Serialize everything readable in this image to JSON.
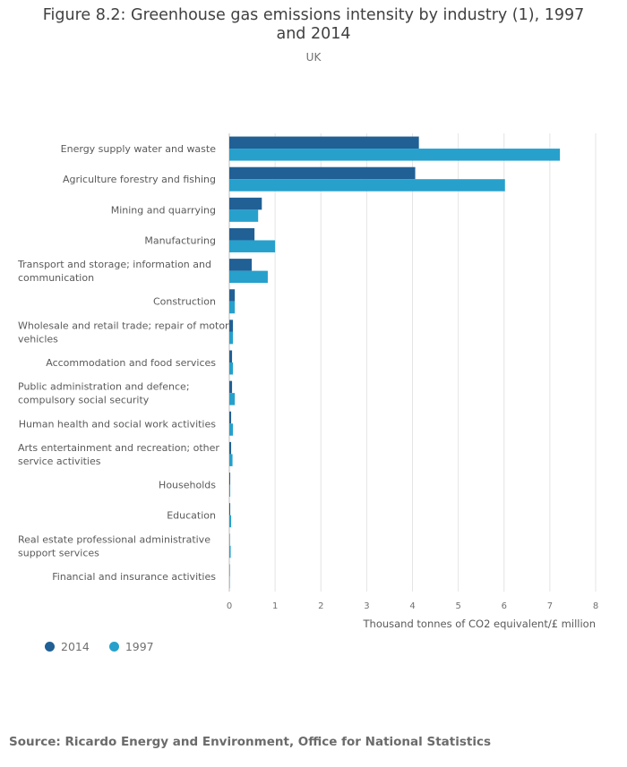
{
  "page": {
    "title": "Figure 8.2: Greenhouse gas emissions intensity by industry (1), 1997 and 2014",
    "subtitle": "UK",
    "source": "Source: Ricardo Energy and Environment, Office for National Statistics"
  },
  "colors": {
    "series_2014": "#206095",
    "series_1997": "#27a0cc",
    "grid": "#e4e4e4",
    "axis": "#bcbcbc"
  },
  "chart_data": {
    "type": "bar",
    "orientation": "horizontal",
    "title": "Figure 8.2: Greenhouse gas emissions intensity by industry (1), 1997 and 2014",
    "subtitle": "UK",
    "xlabel": "Thousand tonnes of CO2 equivalent/£ million",
    "ylabel": "",
    "xlim": [
      0,
      8
    ],
    "x_ticks": [
      0,
      1,
      2,
      3,
      4,
      5,
      6,
      7,
      8
    ],
    "grid": true,
    "legend_position": "bottom-left",
    "categories": [
      [
        "Energy supply water and waste"
      ],
      [
        "Agriculture forestry and fishing"
      ],
      [
        "Mining and quarrying"
      ],
      [
        "Manufacturing"
      ],
      [
        "Transport and storage; information and",
        "communication"
      ],
      [
        "Construction"
      ],
      [
        "Wholesale and retail trade; repair of motor",
        "vehicles"
      ],
      [
        "Accommodation and food services"
      ],
      [
        "Public administration and defence;",
        "compulsory social security"
      ],
      [
        "Human health and social work activities"
      ],
      [
        "Arts entertainment and recreation; other",
        "service activities"
      ],
      [
        "Households"
      ],
      [
        "Education"
      ],
      [
        "Real estate professional administrative",
        "support services"
      ],
      [
        "Financial and insurance activities"
      ]
    ],
    "series": [
      {
        "name": "2014",
        "values": [
          4.14,
          4.06,
          0.71,
          0.55,
          0.49,
          0.12,
          0.08,
          0.06,
          0.06,
          0.04,
          0.04,
          0.02,
          0.02,
          0.01,
          0.01
        ]
      },
      {
        "name": "1997",
        "values": [
          7.22,
          6.02,
          0.63,
          1.0,
          0.84,
          0.12,
          0.08,
          0.08,
          0.12,
          0.08,
          0.07,
          0.02,
          0.04,
          0.03,
          0.01
        ]
      }
    ]
  }
}
